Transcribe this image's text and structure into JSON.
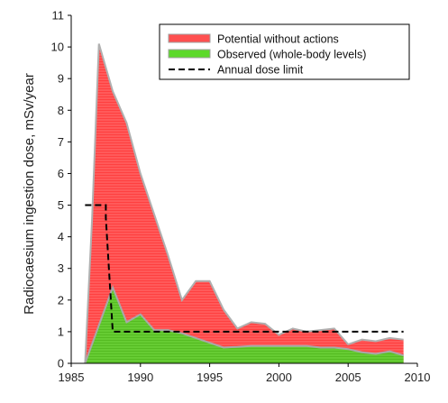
{
  "chart_data": {
    "type": "area",
    "ylabel": "Radiocaesium ingestion dose, mSv/year",
    "xlabel": "",
    "xlim": [
      1985,
      2010
    ],
    "ylim": [
      0,
      11
    ],
    "x_ticks": [
      1985,
      1990,
      1995,
      2000,
      2005,
      2010
    ],
    "y_ticks": [
      0,
      1,
      2,
      3,
      4,
      5,
      6,
      7,
      8,
      9,
      10,
      11
    ],
    "grid": false,
    "legend_position": "top-right",
    "series": [
      {
        "name": "Potential without actions",
        "kind": "area",
        "color": "#ff5050",
        "x": [
          1986,
          1986.5,
          1987,
          1988,
          1989,
          1990,
          1991,
          1992,
          1993,
          1994,
          1995,
          1996,
          1997,
          1998,
          1999,
          2000,
          2001,
          2002,
          2003,
          2004,
          2005,
          2006,
          2007,
          2008,
          2009
        ],
        "values": [
          0,
          4.5,
          10.1,
          8.6,
          7.6,
          6.0,
          4.7,
          3.4,
          2.0,
          2.6,
          2.6,
          1.7,
          1.1,
          1.3,
          1.25,
          0.9,
          1.1,
          1.0,
          1.05,
          1.1,
          0.6,
          0.75,
          0.7,
          0.8,
          0.75
        ]
      },
      {
        "name": "Observed (whole-body levels)",
        "kind": "area",
        "color": "#66cc33",
        "x": [
          1986,
          1986.5,
          1987,
          1988,
          1989,
          1990,
          1991,
          1992,
          1993,
          1994,
          1995,
          1996,
          1997,
          1998,
          1999,
          2000,
          2001,
          2002,
          2003,
          2004,
          2005,
          2006,
          2007,
          2008,
          2009
        ],
        "values": [
          0,
          0.6,
          1.2,
          2.4,
          1.3,
          1.55,
          1.05,
          1.05,
          0.95,
          0.8,
          0.65,
          0.5,
          0.52,
          0.55,
          0.55,
          0.55,
          0.55,
          0.55,
          0.5,
          0.5,
          0.45,
          0.35,
          0.3,
          0.38,
          0.25
        ]
      },
      {
        "name": "Annual dose limit",
        "kind": "step-line",
        "color": "#000000",
        "x": [
          1986,
          1987.5,
          1987.5,
          1988,
          1988,
          2009
        ],
        "values": [
          5,
          5,
          4.6,
          1.0,
          1.0,
          1.0
        ]
      }
    ]
  }
}
